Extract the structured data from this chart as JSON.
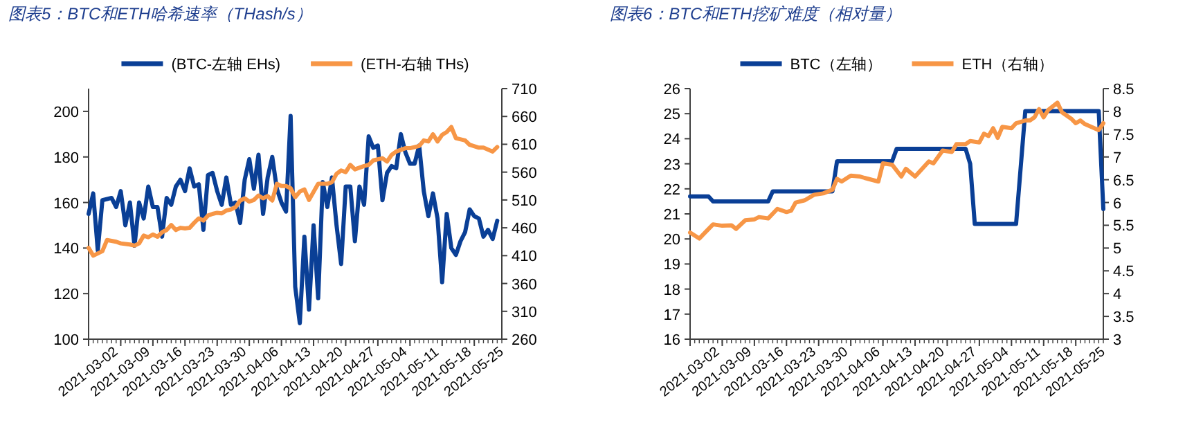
{
  "chart_data": [
    {
      "type": "line",
      "title": "图表5：BTC和ETH哈希速率（THash/s）",
      "legend": "top",
      "xlim": [
        "2021-03-02",
        "2021-05-31"
      ],
      "xticks": [
        "2021-03-02",
        "2021-03-09",
        "2021-03-16",
        "2021-03-23",
        "2021-03-30",
        "2021-04-06",
        "2021-04-13",
        "2021-04-20",
        "2021-04-27",
        "2021-05-04",
        "2021-05-11",
        "2021-05-18",
        "2021-05-25"
      ],
      "ylim": [
        100,
        210
      ],
      "yticks": [
        100,
        120,
        140,
        160,
        180,
        200
      ],
      "y2lim": [
        260,
        710
      ],
      "y2ticks": [
        260,
        310,
        360,
        410,
        460,
        510,
        560,
        610,
        660,
        710
      ],
      "series": [
        {
          "name": "(BTC-左轴 EHs)",
          "color": "#0a3f96",
          "x": [
            "2021-03-02",
            "2021-03-03",
            "2021-03-04",
            "2021-03-05",
            "2021-03-07",
            "2021-03-08",
            "2021-03-09",
            "2021-03-10",
            "2021-03-11",
            "2021-03-12",
            "2021-03-13",
            "2021-03-14",
            "2021-03-15",
            "2021-03-16",
            "2021-03-17",
            "2021-03-18",
            "2021-03-19",
            "2021-03-20",
            "2021-03-21",
            "2021-03-22",
            "2021-03-23",
            "2021-03-24",
            "2021-03-25",
            "2021-03-26",
            "2021-03-27",
            "2021-03-28",
            "2021-03-29",
            "2021-03-30",
            "2021-03-31",
            "2021-04-01",
            "2021-04-02",
            "2021-04-03",
            "2021-04-04",
            "2021-04-05",
            "2021-04-06",
            "2021-04-07",
            "2021-04-08",
            "2021-04-09",
            "2021-04-10",
            "2021-04-11",
            "2021-04-12",
            "2021-04-13",
            "2021-04-14",
            "2021-04-15",
            "2021-04-16",
            "2021-04-17",
            "2021-04-18",
            "2021-04-19",
            "2021-04-20",
            "2021-04-21",
            "2021-04-22",
            "2021-04-23",
            "2021-04-24",
            "2021-04-25",
            "2021-04-26",
            "2021-04-27",
            "2021-04-28",
            "2021-04-29",
            "2021-04-30",
            "2021-05-01",
            "2021-05-02",
            "2021-05-03",
            "2021-05-04",
            "2021-05-05",
            "2021-05-06",
            "2021-05-07",
            "2021-05-08",
            "2021-05-09",
            "2021-05-10",
            "2021-05-11",
            "2021-05-12",
            "2021-05-13",
            "2021-05-14",
            "2021-05-15",
            "2021-05-16",
            "2021-05-17",
            "2021-05-18",
            "2021-05-19",
            "2021-05-20",
            "2021-05-21",
            "2021-05-22",
            "2021-05-23",
            "2021-05-24",
            "2021-05-25",
            "2021-05-26",
            "2021-05-27",
            "2021-05-28",
            "2021-05-29",
            "2021-05-30"
          ],
          "values": [
            155,
            164,
            139,
            161,
            162,
            158,
            165,
            150,
            160,
            141,
            160,
            153,
            167,
            158,
            158,
            145,
            162,
            159,
            167,
            170,
            165,
            175,
            167,
            168,
            148,
            172,
            173,
            165,
            159,
            171,
            159,
            160,
            151,
            170,
            179,
            166,
            181,
            155,
            171,
            180,
            166,
            160,
            156,
            198,
            123,
            107,
            145,
            113,
            150,
            118,
            169,
            158,
            171,
            150,
            133,
            167,
            167,
            143,
            167,
            159,
            189,
            184,
            185,
            161,
            173,
            176,
            175,
            190,
            182,
            177,
            177,
            185,
            165,
            154,
            164,
            153,
            125,
            155,
            140,
            137,
            143,
            147,
            157,
            154,
            153,
            145,
            148,
            144,
            152
          ]
        },
        {
          "name": "(ETH-右轴 THs)",
          "color": "#f79646",
          "axis": "y2",
          "x": [
            "2021-03-02",
            "2021-03-03",
            "2021-03-05",
            "2021-03-06",
            "2021-03-08",
            "2021-03-09",
            "2021-03-11",
            "2021-03-12",
            "2021-03-13",
            "2021-03-14",
            "2021-03-15",
            "2021-03-16",
            "2021-03-17",
            "2021-03-18",
            "2021-03-19",
            "2021-03-20",
            "2021-03-21",
            "2021-03-22",
            "2021-03-23",
            "2021-03-24",
            "2021-03-25",
            "2021-03-26",
            "2021-03-27",
            "2021-03-28",
            "2021-03-29",
            "2021-03-30",
            "2021-03-31",
            "2021-04-01",
            "2021-04-02",
            "2021-04-03",
            "2021-04-04",
            "2021-04-05",
            "2021-04-06",
            "2021-04-07",
            "2021-04-08",
            "2021-04-09",
            "2021-04-10",
            "2021-04-11",
            "2021-04-12",
            "2021-04-13",
            "2021-04-14",
            "2021-04-15",
            "2021-04-16",
            "2021-04-17",
            "2021-04-18",
            "2021-04-19",
            "2021-04-21",
            "2021-04-23",
            "2021-04-24",
            "2021-04-25",
            "2021-04-26",
            "2021-04-27",
            "2021-04-28",
            "2021-04-29",
            "2021-05-01",
            "2021-05-02",
            "2021-05-03",
            "2021-05-05",
            "2021-05-06",
            "2021-05-07",
            "2021-05-08",
            "2021-05-10",
            "2021-05-11",
            "2021-05-13",
            "2021-05-14",
            "2021-05-15",
            "2021-05-16",
            "2021-05-17",
            "2021-05-18",
            "2021-05-19",
            "2021-05-20",
            "2021-05-21",
            "2021-05-23",
            "2021-05-24",
            "2021-05-26",
            "2021-05-27",
            "2021-05-29",
            "2021-05-30"
          ],
          "values": [
            424,
            410,
            418,
            438,
            435,
            432,
            430,
            428,
            432,
            446,
            443,
            448,
            444,
            452,
            456,
            465,
            456,
            460,
            459,
            460,
            469,
            477,
            473,
            482,
            485,
            487,
            486,
            491,
            493,
            497,
            509,
            513,
            507,
            510,
            518,
            513,
            517,
            509,
            539,
            535,
            535,
            531,
            515,
            525,
            529,
            510,
            539,
            539,
            542,
            557,
            563,
            560,
            573,
            565,
            571,
            573,
            581,
            585,
            579,
            591,
            597,
            603,
            603,
            607,
            617,
            615,
            628,
            615,
            627,
            632,
            641,
            621,
            617,
            609,
            604,
            604,
            597,
            605
          ]
        }
      ]
    },
    {
      "type": "line",
      "title": "图表6：BTC和ETH挖矿难度（相对量）",
      "legend": "top",
      "xlim": [
        "2021-03-02",
        "2021-05-31"
      ],
      "xticks": [
        "2021-03-02",
        "2021-03-09",
        "2021-03-16",
        "2021-03-23",
        "2021-03-30",
        "2021-04-06",
        "2021-04-13",
        "2021-04-20",
        "2021-04-27",
        "2021-05-04",
        "2021-05-11",
        "2021-05-18",
        "2021-05-25"
      ],
      "ylim": [
        16,
        26
      ],
      "yticks": [
        16,
        17,
        18,
        19,
        20,
        21,
        22,
        23,
        24,
        25,
        26
      ],
      "y2lim": [
        3,
        8.5
      ],
      "y2ticks": [
        3,
        3.5,
        4,
        4.5,
        5,
        5.5,
        6,
        6.5,
        7,
        7.5,
        8,
        8.5
      ],
      "series": [
        {
          "name": "BTC（左轴）",
          "color": "#0a3f96",
          "x": [
            "2021-03-02",
            "2021-03-06",
            "2021-03-07",
            "2021-03-19",
            "2021-03-20",
            "2021-04-02",
            "2021-04-03",
            "2021-04-15",
            "2021-04-16",
            "2021-05-01",
            "2021-05-02",
            "2021-05-03",
            "2021-05-12",
            "2021-05-14",
            "2021-05-30",
            "2021-05-31"
          ],
          "values": [
            21.7,
            21.7,
            21.5,
            21.5,
            21.9,
            21.9,
            23.1,
            23.1,
            23.6,
            23.6,
            23.0,
            20.6,
            20.6,
            25.1,
            25.1,
            21.2
          ]
        },
        {
          "name": "ETH（右轴）",
          "color": "#f79646",
          "axis": "y2",
          "x": [
            "2021-03-02",
            "2021-03-04",
            "2021-03-07",
            "2021-03-09",
            "2021-03-11",
            "2021-03-12",
            "2021-03-14",
            "2021-03-16",
            "2021-03-17",
            "2021-03-19",
            "2021-03-21",
            "2021-03-23",
            "2021-03-24",
            "2021-03-25",
            "2021-03-27",
            "2021-03-29",
            "2021-03-31",
            "2021-04-02",
            "2021-04-03",
            "2021-04-04",
            "2021-04-06",
            "2021-04-08",
            "2021-04-09",
            "2021-04-12",
            "2021-04-13",
            "2021-04-15",
            "2021-04-17",
            "2021-04-18",
            "2021-04-20",
            "2021-04-23",
            "2021-04-24",
            "2021-04-26",
            "2021-04-28",
            "2021-04-29",
            "2021-05-01",
            "2021-05-02",
            "2021-05-04",
            "2021-05-05",
            "2021-05-06",
            "2021-05-07",
            "2021-05-08",
            "2021-05-09",
            "2021-05-11",
            "2021-05-12",
            "2021-05-14",
            "2021-05-15",
            "2021-05-16",
            "2021-05-17",
            "2021-05-18",
            "2021-05-19",
            "2021-05-21",
            "2021-05-22",
            "2021-05-24",
            "2021-05-25",
            "2021-05-26",
            "2021-05-27",
            "2021-05-30",
            "2021-05-31"
          ],
          "values": [
            5.34,
            5.21,
            5.52,
            5.49,
            5.5,
            5.42,
            5.61,
            5.63,
            5.68,
            5.65,
            5.86,
            5.79,
            5.82,
            6.0,
            6.05,
            6.17,
            6.2,
            6.28,
            6.52,
            6.46,
            6.59,
            6.57,
            6.54,
            6.46,
            6.86,
            6.83,
            6.57,
            6.74,
            6.57,
            6.9,
            6.86,
            7.14,
            7.11,
            7.28,
            7.28,
            7.35,
            7.32,
            7.51,
            7.46,
            7.63,
            7.42,
            7.66,
            7.63,
            7.74,
            7.8,
            7.8,
            7.87,
            8.05,
            7.87,
            8.03,
            8.19,
            7.98,
            7.84,
            7.74,
            7.8,
            7.72,
            7.59,
            7.74
          ]
        }
      ]
    }
  ]
}
